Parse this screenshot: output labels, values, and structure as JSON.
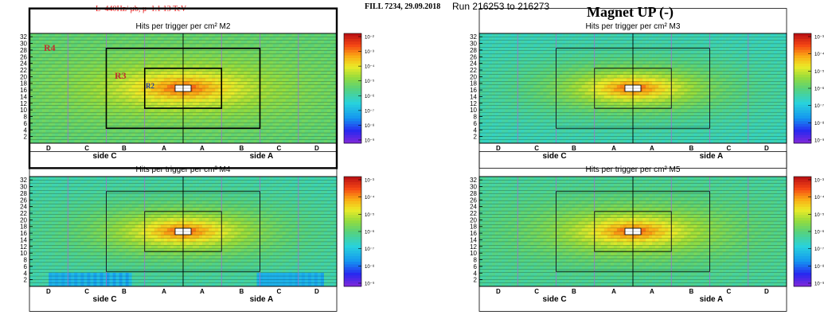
{
  "header": {
    "luminosity": "L~440Hz/ μb,   μ~1.1   13 TeV",
    "fill": "FILL 7234, 29.09.2018",
    "runs": "Run 216253 to 216273",
    "magnet": "Magnet UP (-)"
  },
  "chart_data": [
    {
      "type": "heatmap",
      "title": "Hits per trigger per cm² M2",
      "y_ticks": [
        "2",
        "4",
        "6",
        "8",
        "10",
        "12",
        "14",
        "16",
        "18",
        "20",
        "22",
        "24",
        "26",
        "28",
        "30",
        "32"
      ],
      "x_region_labels": [
        "D",
        "C",
        "B",
        "A",
        "A",
        "B",
        "C",
        "D"
      ],
      "x_side_labels": [
        "side C",
        "side A"
      ],
      "colorbar_ticks": [
        "10⁻²",
        "10⁻³",
        "10⁻⁴",
        "10⁻⁵",
        "10⁻⁶",
        "10⁻⁷",
        "10⁻⁸",
        "10⁻⁹"
      ],
      "colorbar_log": true,
      "region_labels": [
        "R4",
        "R3",
        "R2"
      ],
      "peak_level": 0.93,
      "background_level": 0.5,
      "low_patches": []
    },
    {
      "type": "heatmap",
      "title": "Hits per trigger per cm² M3",
      "y_ticks": [
        "2",
        "4",
        "6",
        "8",
        "10",
        "12",
        "14",
        "16",
        "18",
        "20",
        "22",
        "24",
        "26",
        "28",
        "30",
        "32"
      ],
      "x_region_labels": [
        "D",
        "C",
        "B",
        "A",
        "A",
        "B",
        "C",
        "D"
      ],
      "x_side_labels": [
        "side C",
        "side A"
      ],
      "colorbar_ticks": [
        "10⁻³",
        "10⁻⁴",
        "10⁻⁵",
        "10⁻⁶",
        "10⁻⁷",
        "10⁻⁸",
        "10⁻⁹"
      ],
      "colorbar_log": true,
      "region_labels": [],
      "peak_level": 0.93,
      "background_level": 0.4,
      "low_patches": []
    },
    {
      "type": "heatmap",
      "title": "Hits per trigger per cm² M4",
      "y_ticks": [
        "2",
        "4",
        "6",
        "8",
        "10",
        "12",
        "14",
        "16",
        "18",
        "20",
        "22",
        "24",
        "26",
        "28",
        "30",
        "32"
      ],
      "x_region_labels": [
        "D",
        "C",
        "B",
        "A",
        "A",
        "B",
        "C",
        "D"
      ],
      "x_side_labels": [
        "side C",
        "side A"
      ],
      "colorbar_ticks": [
        "10⁻³",
        "10⁻⁴",
        "10⁻⁵",
        "10⁻⁶",
        "10⁻⁷",
        "10⁻⁸",
        "10⁻⁹"
      ],
      "colorbar_log": true,
      "region_labels": [],
      "peak_level": 0.93,
      "background_level": 0.42,
      "low_patches": [
        "bottom-left",
        "bottom-right"
      ]
    },
    {
      "type": "heatmap",
      "title": "Hits per trigger per cm² M5",
      "y_ticks": [
        "2",
        "4",
        "6",
        "8",
        "10",
        "12",
        "14",
        "16",
        "18",
        "20",
        "22",
        "24",
        "26",
        "28",
        "30",
        "32"
      ],
      "x_region_labels": [
        "D",
        "C",
        "B",
        "A",
        "A",
        "B",
        "C",
        "D"
      ],
      "x_side_labels": [
        "side C",
        "side A"
      ],
      "colorbar_ticks": [
        "10⁻³",
        "10⁻⁴",
        "10⁻⁵",
        "10⁻⁶",
        "10⁻⁷",
        "10⁻⁸",
        "10⁻⁹"
      ],
      "colorbar_log": true,
      "region_labels": [],
      "peak_level": 0.93,
      "background_level": 0.44,
      "low_patches": []
    }
  ]
}
